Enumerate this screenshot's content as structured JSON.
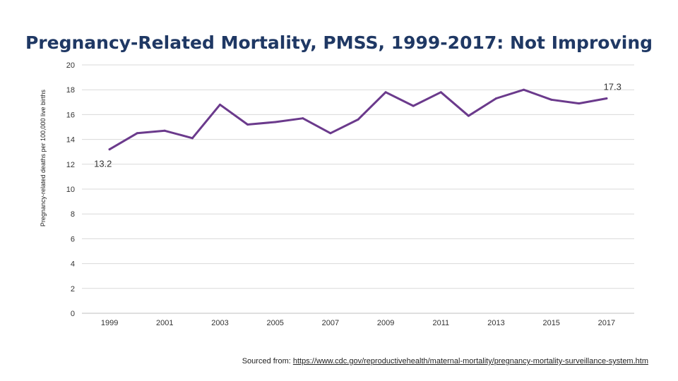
{
  "chart_data": {
    "type": "line",
    "title": "Pregnancy-Related Mortality, PMSS, 1999-2017: Not Improving",
    "ylabel": "Pregnancy-related deaths per 100,000 live births",
    "xlabel": "",
    "ylim": [
      0,
      20
    ],
    "yticks": [
      0,
      2,
      4,
      6,
      8,
      10,
      12,
      14,
      16,
      18,
      20
    ],
    "xtick_labels": [
      "1999",
      "2001",
      "2003",
      "2005",
      "2007",
      "2009",
      "2011",
      "2013",
      "2015",
      "2017"
    ],
    "grid": true,
    "legend": "none",
    "color": "#6b3a8c",
    "series": [
      {
        "x": [
          1999,
          2000,
          2001,
          2002,
          2003,
          2004,
          2005,
          2006,
          2007,
          2008,
          2009,
          2010,
          2011,
          2012,
          2013,
          2014,
          2015,
          2016,
          2017
        ],
        "values": [
          13.2,
          14.5,
          14.7,
          14.1,
          16.8,
          15.2,
          15.4,
          15.7,
          14.5,
          15.6,
          17.8,
          16.7,
          17.8,
          15.9,
          17.3,
          18.0,
          17.2,
          16.9,
          17.3
        ]
      }
    ],
    "data_labels": [
      {
        "x": 1999,
        "text": "13.2"
      },
      {
        "x": 2017,
        "text": "17.3"
      }
    ]
  },
  "source": {
    "prefix": "Sourced from: ",
    "link_text": "https://www.cdc.gov/reproductivehealth/maternal-mortality/pregnancy-mortality-surveillance-system.htm"
  }
}
